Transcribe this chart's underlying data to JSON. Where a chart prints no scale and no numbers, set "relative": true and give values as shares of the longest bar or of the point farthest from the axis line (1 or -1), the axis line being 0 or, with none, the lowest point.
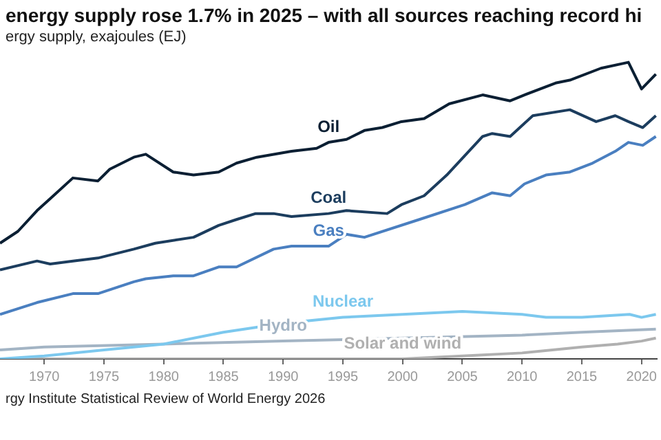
{
  "chart_data": {
    "type": "line",
    "title": "energy supply rose 1.7% in 2025 – with all sources reaching record hi",
    "subtitle": "ergy supply, exajoules (EJ)",
    "annotations": [
      "rgy Institute Statistical Review of World Energy 2026"
    ],
    "relative": true,
    "xlim": [
      1966.3,
      2021.3
    ],
    "xticks": [
      1970,
      1975,
      1980,
      1985,
      1990,
      1995,
      2000,
      2005,
      2010,
      2015,
      2020
    ],
    "marker": "none",
    "legend": false,
    "series": [
      {
        "name": "Oil",
        "color": "#0b1f33",
        "x": [
          1966.3,
          1967.8,
          1969.4,
          1970.5,
          1972.4,
          1974.5,
          1975.5,
          1977.5,
          1978.5,
          1980.8,
          1982.5,
          1984.6,
          1986.1,
          1987.8,
          1990.7,
          1992.8,
          1993.8,
          1995.3,
          1996.8,
          1998.3,
          1999.9,
          2001.8,
          2003.9,
          2006.7,
          2009.0,
          2010.2,
          2012.8,
          2014.0,
          2016.6,
          2018.9,
          2020.0,
          2021.2
        ],
        "values": [
          0.39,
          0.43,
          0.5,
          0.54,
          0.61,
          0.6,
          0.64,
          0.68,
          0.69,
          0.63,
          0.62,
          0.63,
          0.66,
          0.68,
          0.7,
          0.71,
          0.73,
          0.74,
          0.77,
          0.78,
          0.8,
          0.81,
          0.86,
          0.89,
          0.87,
          0.89,
          0.93,
          0.94,
          0.98,
          1.0,
          0.91,
          0.96
        ]
      },
      {
        "name": "Coal",
        "color": "#1c3d5e",
        "x": [
          1966.3,
          1969.4,
          1970.5,
          1972.4,
          1974.5,
          1977.5,
          1979.3,
          1982.5,
          1984.6,
          1986.1,
          1987.7,
          1989.2,
          1990.7,
          1993.8,
          1995.3,
          1998.7,
          1999.9,
          2001.8,
          2003.7,
          2006.7,
          2007.5,
          2009.0,
          2010.9,
          2014.0,
          2016.2,
          2017.8,
          2018.9,
          2020.1,
          2021.2
        ],
        "values": [
          0.3,
          0.33,
          0.32,
          0.33,
          0.34,
          0.37,
          0.39,
          0.41,
          0.45,
          0.47,
          0.49,
          0.49,
          0.48,
          0.49,
          0.5,
          0.49,
          0.52,
          0.55,
          0.62,
          0.75,
          0.76,
          0.75,
          0.82,
          0.84,
          0.8,
          0.82,
          0.8,
          0.78,
          0.82
        ]
      },
      {
        "name": "Gas",
        "color": "#4a7fc0",
        "x": [
          1966.3,
          1969.4,
          1972.4,
          1974.5,
          1977.5,
          1978.5,
          1980.8,
          1982.5,
          1984.6,
          1986.1,
          1989.2,
          1990.7,
          1993.8,
          1995.3,
          1996.8,
          2001.4,
          2005.2,
          2007.5,
          2009.0,
          2010.2,
          2012.0,
          2014.0,
          2015.9,
          2017.8,
          2018.9,
          2020.1,
          2021.2
        ],
        "values": [
          0.15,
          0.19,
          0.22,
          0.22,
          0.26,
          0.27,
          0.28,
          0.28,
          0.31,
          0.31,
          0.37,
          0.38,
          0.38,
          0.42,
          0.41,
          0.47,
          0.52,
          0.56,
          0.55,
          0.59,
          0.62,
          0.63,
          0.66,
          0.7,
          0.73,
          0.72,
          0.75
        ]
      },
      {
        "name": "Nuclear",
        "color": "#7cc8ee",
        "x": [
          1966.3,
          1970,
          1975,
          1980,
          1985,
          1990,
          1995,
          2000,
          2005,
          2010,
          2012,
          2015,
          2019,
          2020,
          2021.2
        ],
        "values": [
          0.0,
          0.01,
          0.03,
          0.05,
          0.09,
          0.12,
          0.14,
          0.15,
          0.16,
          0.15,
          0.14,
          0.14,
          0.15,
          0.14,
          0.15
        ]
      },
      {
        "name": "Hydro",
        "color": "#a3b4c4",
        "x": [
          1966.3,
          1970,
          1980,
          1990,
          2000,
          2010,
          2015,
          2021.2
        ],
        "values": [
          0.03,
          0.04,
          0.05,
          0.06,
          0.07,
          0.08,
          0.09,
          0.1
        ]
      },
      {
        "name": "Solar and wind",
        "color": "#b0b0b0",
        "x": [
          1966.3,
          2000,
          2005,
          2010,
          2015,
          2018,
          2020,
          2021.2
        ],
        "values": [
          0.0,
          0.0,
          0.01,
          0.02,
          0.04,
          0.05,
          0.06,
          0.07
        ]
      }
    ]
  }
}
